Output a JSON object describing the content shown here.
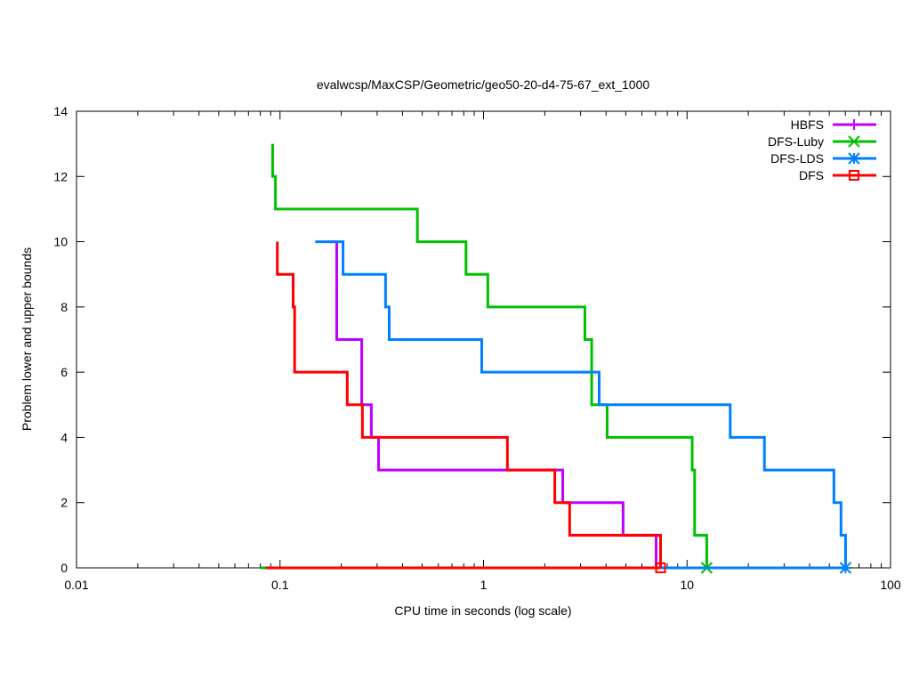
{
  "chart_data": {
    "type": "line",
    "title": "evalwcsp/MaxCSP/Geometric/geo50-20-d4-75-67_ext_1000",
    "xlabel": "CPU time in seconds (log scale)",
    "ylabel": "Problem lower and upper bounds",
    "xscale": "log",
    "xlim": [
      0.01,
      100
    ],
    "ylim": [
      0,
      14
    ],
    "xticks": [
      0.01,
      0.1,
      1,
      10,
      100
    ],
    "xtick_labels": [
      "0.01",
      "0.1",
      "1",
      "10",
      "100"
    ],
    "yticks": [
      0,
      2,
      4,
      6,
      8,
      10,
      12,
      14
    ],
    "ytick_labels": [
      "0",
      "2",
      "4",
      "6",
      "8",
      "10",
      "12",
      "14"
    ],
    "legend_position": "top-right",
    "series": [
      {
        "name": "HBFS",
        "color": "#c000ff",
        "marker": "plus",
        "lower_start": 0.175,
        "upper": [
          [
            0.175,
            10
          ],
          [
            0.19,
            9
          ],
          [
            0.19,
            7
          ],
          [
            0.252,
            5
          ],
          [
            0.281,
            4
          ],
          [
            0.305,
            3
          ],
          [
            2.45,
            2
          ],
          [
            4.85,
            1
          ],
          [
            7.05,
            0
          ]
        ]
      },
      {
        "name": "DFS-Luby",
        "color": "#00c000",
        "marker": "cross",
        "lower_start": 0.08,
        "upper": [
          [
            0.092,
            13
          ],
          [
            0.092,
            12
          ],
          [
            0.095,
            11
          ],
          [
            0.473,
            10
          ],
          [
            0.82,
            9
          ],
          [
            1.05,
            8
          ],
          [
            3.15,
            7
          ],
          [
            3.4,
            5
          ],
          [
            4.05,
            4
          ],
          [
            10.6,
            3
          ],
          [
            10.9,
            1
          ],
          [
            12.5,
            0
          ]
        ]
      },
      {
        "name": "DFS-LDS",
        "color": "#0080ff",
        "marker": "star",
        "lower_start": 0.149,
        "upper": [
          [
            0.149,
            10
          ],
          [
            0.204,
            9
          ],
          [
            0.33,
            8
          ],
          [
            0.344,
            7
          ],
          [
            0.98,
            6
          ],
          [
            3.7,
            5
          ],
          [
            16.3,
            4
          ],
          [
            24.0,
            3
          ],
          [
            52.7,
            2
          ],
          [
            57.1,
            1
          ],
          [
            60.1,
            0
          ]
        ]
      },
      {
        "name": "DFS",
        "color": "#ff0000",
        "marker": "square",
        "lower_start": 0.085,
        "upper": [
          [
            0.097,
            10
          ],
          [
            0.097,
            9
          ],
          [
            0.116,
            8
          ],
          [
            0.118,
            6
          ],
          [
            0.214,
            5
          ],
          [
            0.254,
            4
          ],
          [
            1.31,
            3
          ],
          [
            2.24,
            2
          ],
          [
            2.65,
            1
          ],
          [
            7.41,
            0
          ]
        ]
      }
    ]
  }
}
